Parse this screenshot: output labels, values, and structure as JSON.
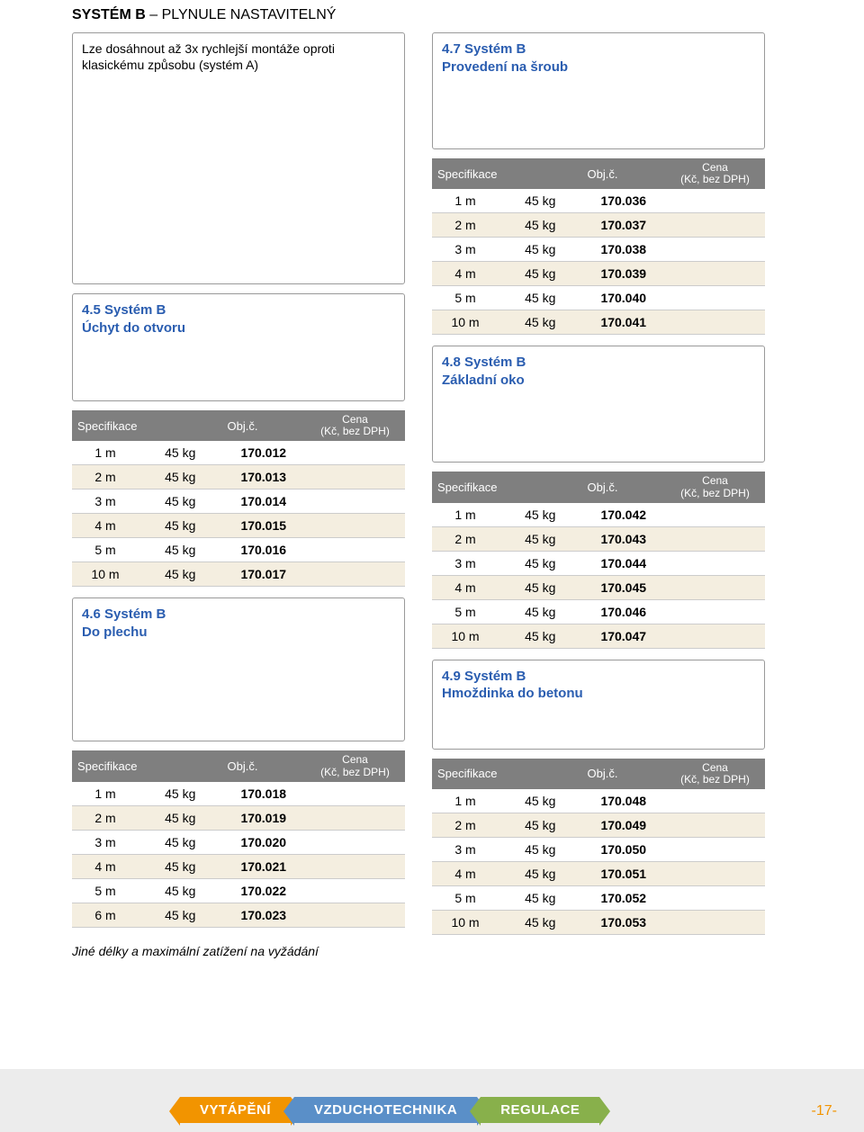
{
  "header": {
    "bold": "SYSTÉM B",
    "rest": " – PLYNULE NASTAVITELNÝ"
  },
  "intro": "Lze dosáhnout až 3x rychlejší montáže oproti klasickému způsobu (systém A)",
  "table_headers": {
    "spec": "Specifikace",
    "objc": "Obj.č.",
    "cena_l1": "Cena",
    "cena_l2": "(Kč, bez DPH)"
  },
  "sections": {
    "s45": {
      "title_l1": "4.5 Systém B",
      "title_l2": "Úchyt do otvoru",
      "rows": [
        {
          "len": "1 m",
          "kg": "45 kg",
          "obj": "170.012"
        },
        {
          "len": "2 m",
          "kg": "45 kg",
          "obj": "170.013"
        },
        {
          "len": "3 m",
          "kg": "45 kg",
          "obj": "170.014"
        },
        {
          "len": "4 m",
          "kg": "45 kg",
          "obj": "170.015"
        },
        {
          "len": "5 m",
          "kg": "45 kg",
          "obj": "170.016"
        },
        {
          "len": "10 m",
          "kg": "45 kg",
          "obj": "170.017"
        }
      ]
    },
    "s46": {
      "title_l1": "4.6 Systém B",
      "title_l2": "Do plechu",
      "rows": [
        {
          "len": "1 m",
          "kg": "45 kg",
          "obj": "170.018"
        },
        {
          "len": "2 m",
          "kg": "45 kg",
          "obj": "170.019"
        },
        {
          "len": "3 m",
          "kg": "45 kg",
          "obj": "170.020"
        },
        {
          "len": "4 m",
          "kg": "45 kg",
          "obj": "170.021"
        },
        {
          "len": "5 m",
          "kg": "45 kg",
          "obj": "170.022"
        },
        {
          "len": "6 m",
          "kg": "45 kg",
          "obj": "170.023"
        }
      ]
    },
    "s47": {
      "title_l1": "4.7 Systém B",
      "title_l2": "Provedení na šroub",
      "rows": [
        {
          "len": "1 m",
          "kg": "45 kg",
          "obj": "170.036"
        },
        {
          "len": "2 m",
          "kg": "45 kg",
          "obj": "170.037"
        },
        {
          "len": "3 m",
          "kg": "45 kg",
          "obj": "170.038"
        },
        {
          "len": "4 m",
          "kg": "45 kg",
          "obj": "170.039"
        },
        {
          "len": "5 m",
          "kg": "45 kg",
          "obj": "170.040"
        },
        {
          "len": "10 m",
          "kg": "45 kg",
          "obj": "170.041"
        }
      ]
    },
    "s48": {
      "title_l1": "4.8 Systém B",
      "title_l2": "Základní oko",
      "rows": [
        {
          "len": "1 m",
          "kg": "45 kg",
          "obj": "170.042"
        },
        {
          "len": "2 m",
          "kg": "45 kg",
          "obj": "170.043"
        },
        {
          "len": "3 m",
          "kg": "45 kg",
          "obj": "170.044"
        },
        {
          "len": "4 m",
          "kg": "45 kg",
          "obj": "170.045"
        },
        {
          "len": "5 m",
          "kg": "45 kg",
          "obj": "170.046"
        },
        {
          "len": "10 m",
          "kg": "45 kg",
          "obj": "170.047"
        }
      ]
    },
    "s49": {
      "title_l1": "4.9 Systém B",
      "title_l2": "Hmoždinka do betonu",
      "rows": [
        {
          "len": "1 m",
          "kg": "45 kg",
          "obj": "170.048"
        },
        {
          "len": "2 m",
          "kg": "45 kg",
          "obj": "170.049"
        },
        {
          "len": "3 m",
          "kg": "45 kg",
          "obj": "170.050"
        },
        {
          "len": "4 m",
          "kg": "45 kg",
          "obj": "170.051"
        },
        {
          "len": "5 m",
          "kg": "45 kg",
          "obj": "170.052"
        },
        {
          "len": "10 m",
          "kg": "45 kg",
          "obj": "170.053"
        }
      ]
    }
  },
  "footnote": "Jiné délky a maximální zatížení na vyžádání",
  "tabs": {
    "heating": "VYTÁPĚNÍ",
    "hvac": "VZDUCHOTECHNIKA",
    "regulation": "REGULACE"
  },
  "page_number": "-17-",
  "colors": {
    "title_blue": "#2a5db0",
    "header_gray": "#7f7f7f",
    "row_even": "#f4eee0",
    "tab_orange": "#f29400",
    "tab_blue": "#5a8fc8",
    "tab_green": "#88b04b",
    "footer_bg": "#ececec"
  }
}
